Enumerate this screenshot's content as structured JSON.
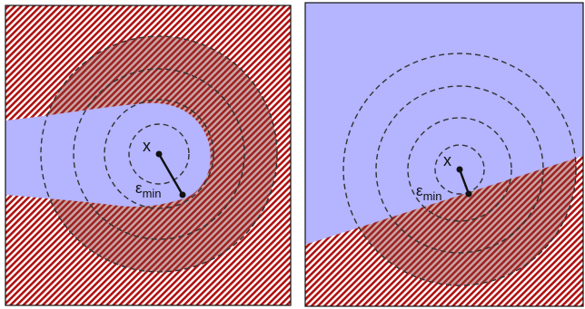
{
  "colors": {
    "free_region": "#b4b4ff",
    "obstacle_stripe": "#b01010",
    "obstacle_bg": "#ffffff",
    "overlap_tint": "#8a3b3b",
    "dash_circles": "#333333",
    "border": "#111111"
  },
  "panels": [
    {
      "id": "left",
      "point_label": "x",
      "epsilon_symbol": "ε",
      "epsilon_subscript": "min"
    },
    {
      "id": "right",
      "point_label": "x",
      "epsilon_symbol": "ε",
      "epsilon_subscript": "min"
    }
  ]
}
